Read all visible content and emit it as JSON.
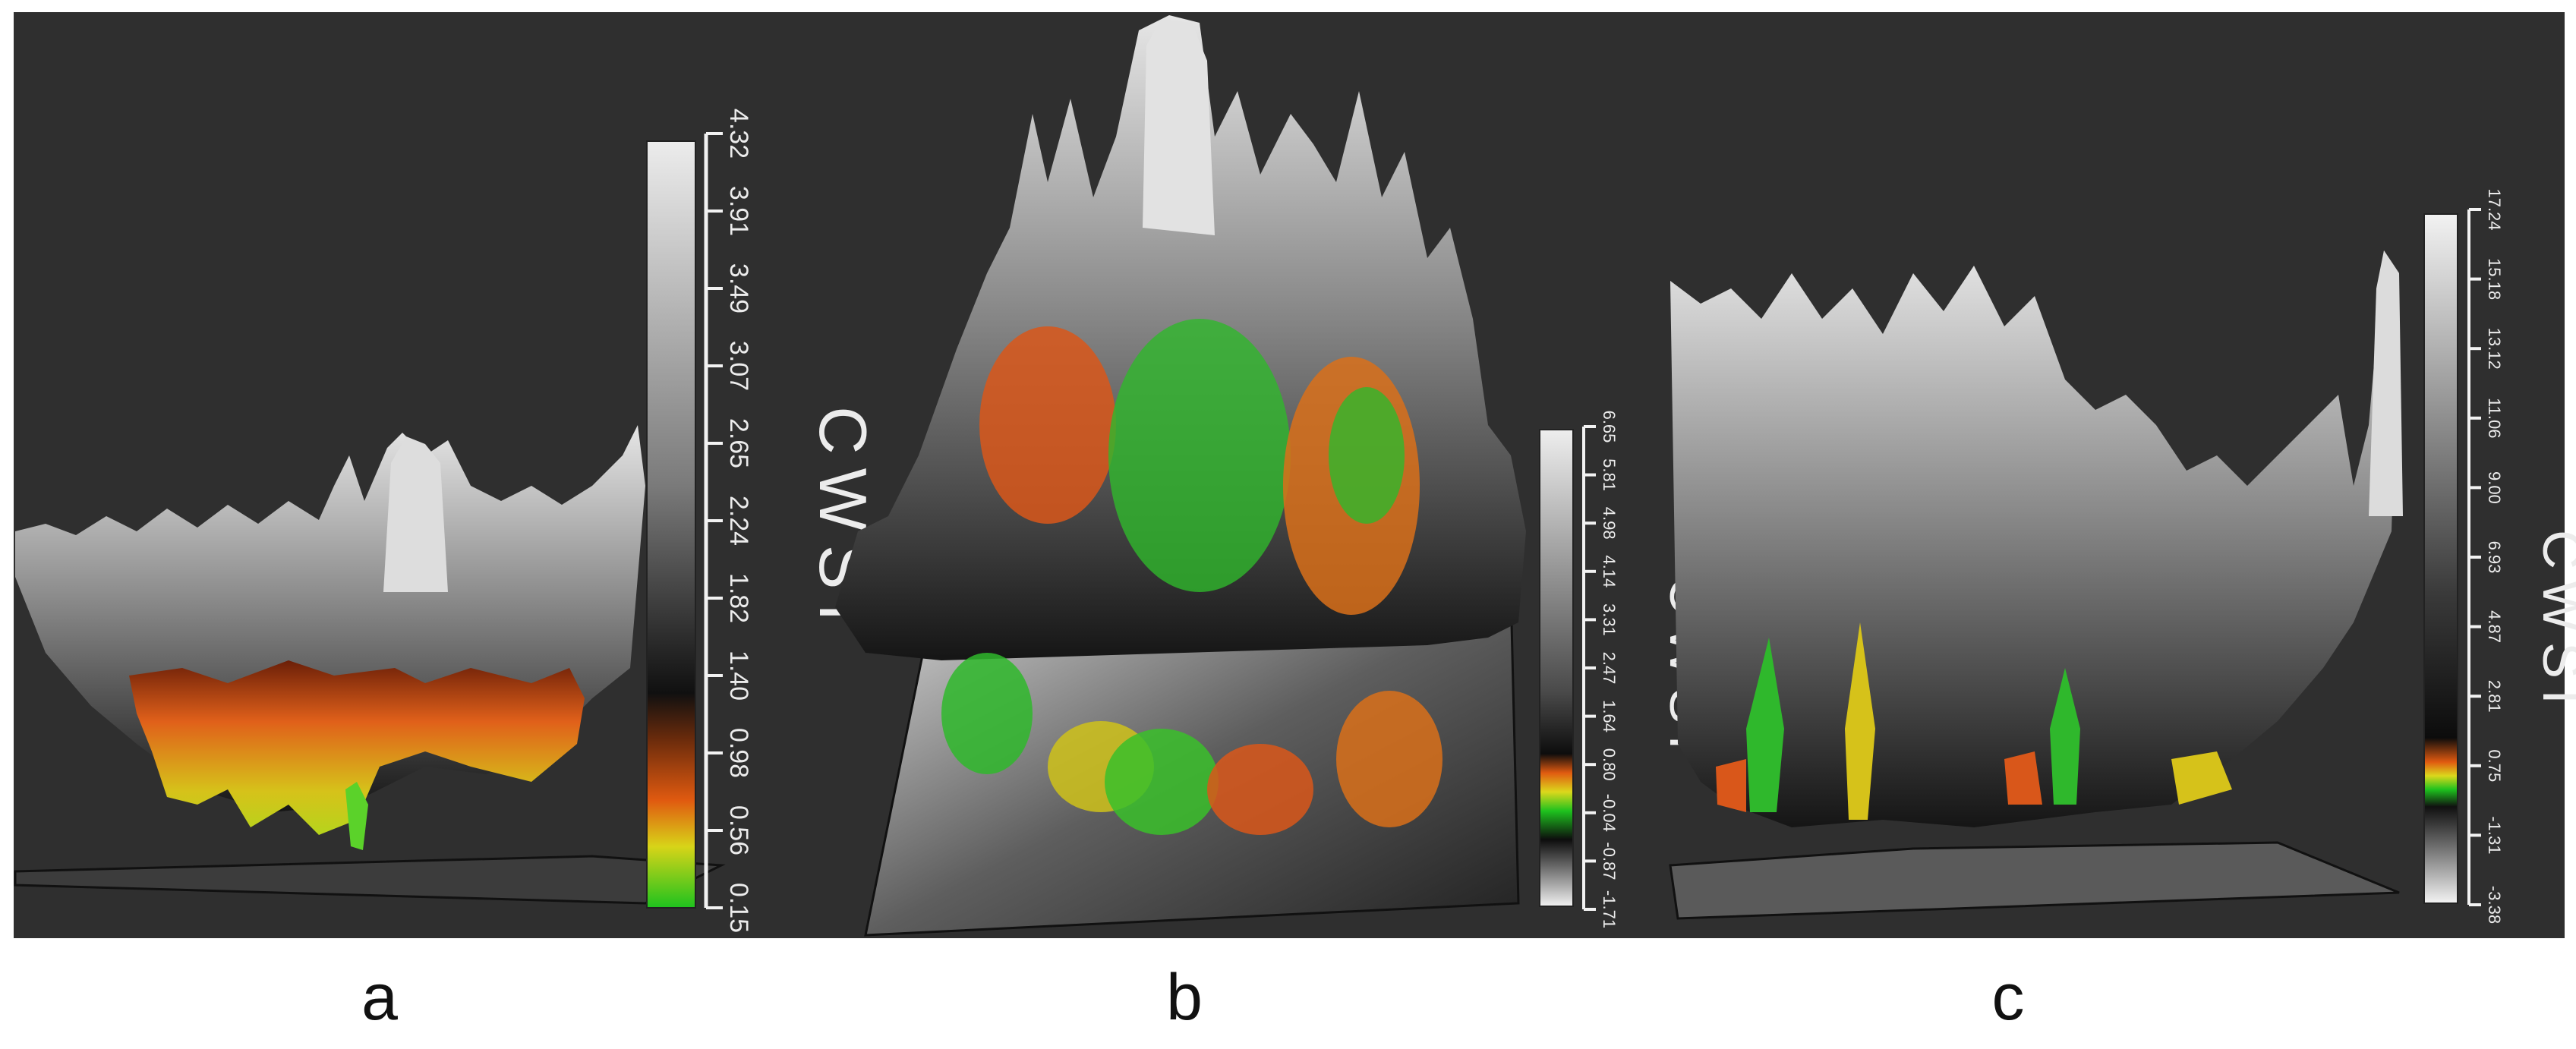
{
  "panels": [
    {
      "label": "a",
      "colorbar_title": "CWSI",
      "ticks": [
        "4.32",
        "3.91",
        "3.49",
        "3.07",
        "2.65",
        "2.24",
        "1.82",
        "1.40",
        "0.98",
        "0.56",
        "0.15"
      ]
    },
    {
      "label": "b",
      "colorbar_title": "CWSI",
      "ticks": [
        "6.65",
        "5.81",
        "4.98",
        "4.14",
        "3.31",
        "2.47",
        "1.64",
        "0.80",
        "-0.04",
        "-0.87",
        "-1.71"
      ]
    },
    {
      "label": "c",
      "colorbar_title": "CWSI",
      "ticks": [
        "17.24",
        "15.18",
        "13.12",
        "11.06",
        "9.00",
        "6.93",
        "4.87",
        "2.81",
        "0.75",
        "-1.31",
        "-3.38"
      ]
    }
  ],
  "colors": {
    "background": "#2f2f2f",
    "cold": "#27b82b",
    "mid": "#d4d414",
    "warm": "#d9531a",
    "surface_light": "#d8d8d8",
    "surface_dark": "#111111"
  }
}
